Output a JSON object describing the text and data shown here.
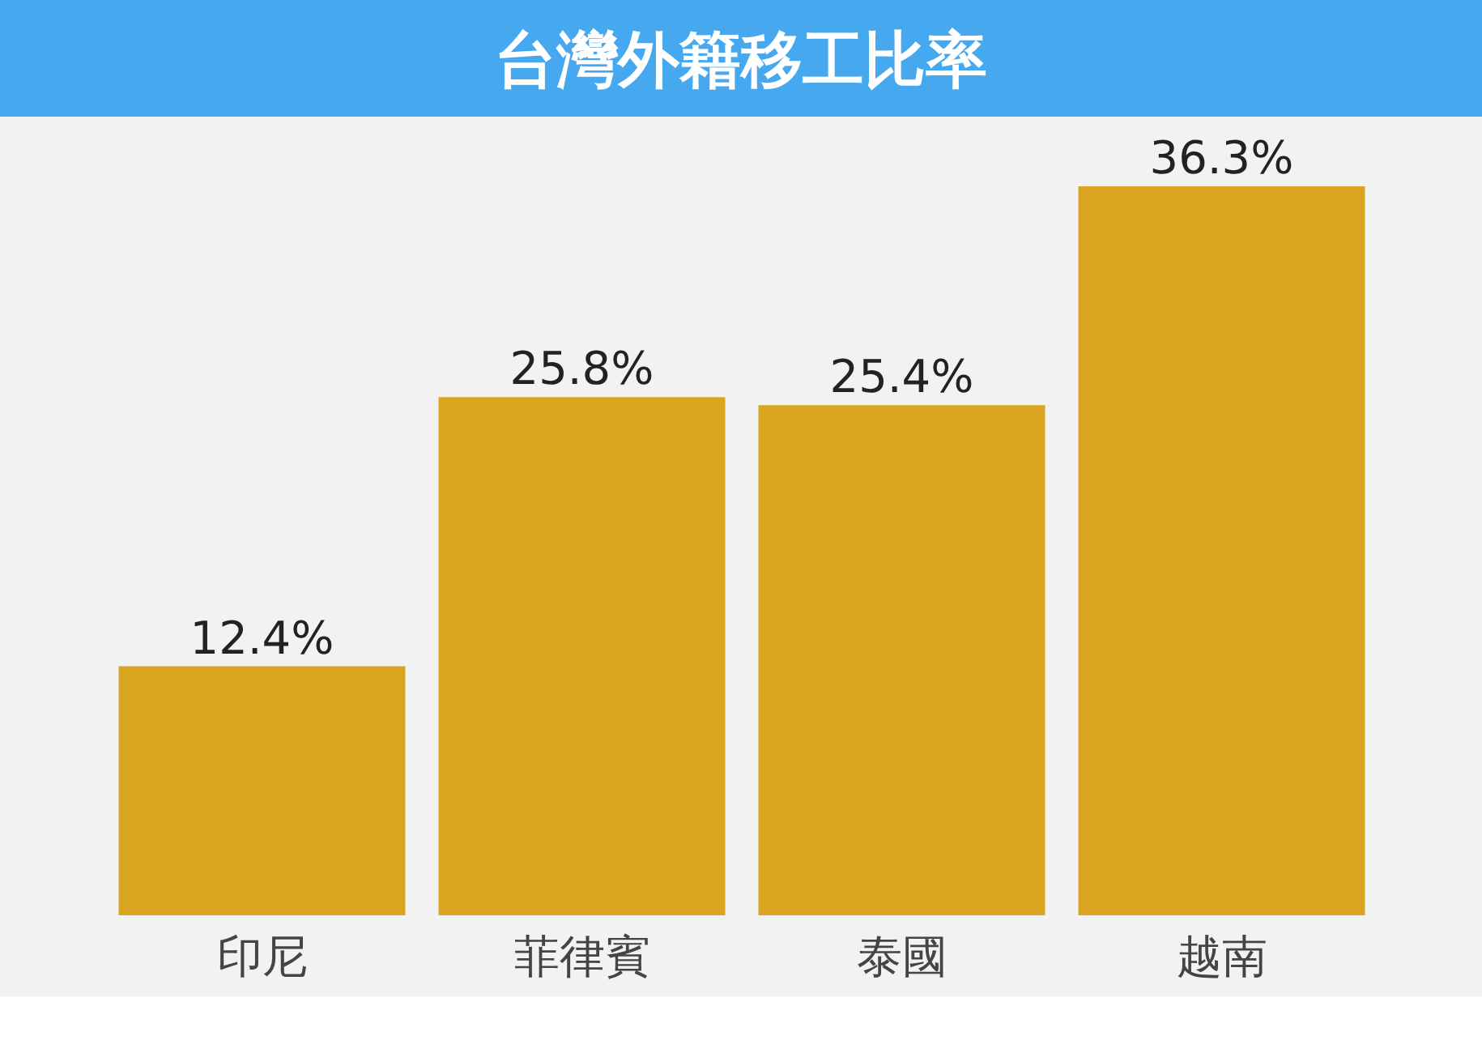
{
  "chart_data": {
    "type": "bar",
    "title": "台灣外籍移工比率",
    "categories": [
      "印尼",
      "菲律賓",
      "泰國",
      "越南"
    ],
    "values": [
      12.4,
      25.8,
      25.4,
      36.3
    ],
    "value_labels": [
      "12.4%",
      "25.8%",
      "25.4%",
      "36.3%"
    ],
    "color": "#d9a521"
  }
}
